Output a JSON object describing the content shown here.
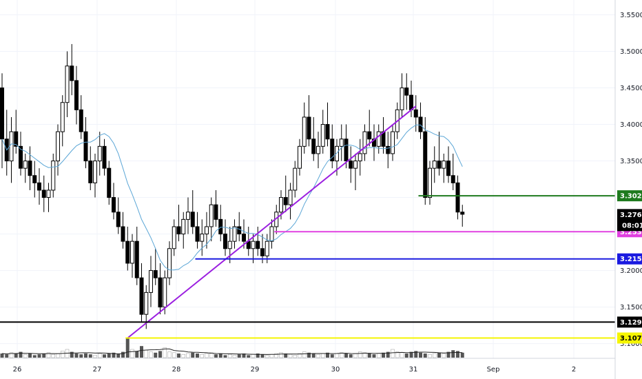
{
  "chart_data": {
    "type": "candlestick",
    "title": "",
    "xlabel": "",
    "ylabel": "",
    "ylim": [
      3.093,
      3.559
    ],
    "x_ticks": [
      "26",
      "27",
      "28",
      "29",
      "30",
      "31",
      "Sep",
      "2"
    ],
    "y_ticks": [
      "3.1000",
      "3.1500",
      "3.2000",
      "3.2500",
      "3.3000",
      "3.3500",
      "3.4000",
      "3.4500",
      "3.5000",
      "3.5500"
    ],
    "candles": [
      [
        3.45,
        3.47,
        3.34,
        3.38
      ],
      [
        3.38,
        3.42,
        3.33,
        3.35
      ],
      [
        3.35,
        3.41,
        3.32,
        3.39
      ],
      [
        3.39,
        3.42,
        3.36,
        3.37
      ],
      [
        3.37,
        3.39,
        3.33,
        3.34
      ],
      [
        3.34,
        3.36,
        3.32,
        3.35
      ],
      [
        3.35,
        3.37,
        3.31,
        3.33
      ],
      [
        3.33,
        3.35,
        3.3,
        3.32
      ],
      [
        3.32,
        3.34,
        3.29,
        3.31
      ],
      [
        3.31,
        3.33,
        3.28,
        3.3
      ],
      [
        3.3,
        3.32,
        3.28,
        3.31
      ],
      [
        3.31,
        3.36,
        3.3,
        3.35
      ],
      [
        3.35,
        3.4,
        3.33,
        3.39
      ],
      [
        3.39,
        3.44,
        3.37,
        3.43
      ],
      [
        3.43,
        3.5,
        3.41,
        3.48
      ],
      [
        3.48,
        3.51,
        3.44,
        3.46
      ],
      [
        3.46,
        3.48,
        3.4,
        3.42
      ],
      [
        3.42,
        3.44,
        3.38,
        3.39
      ],
      [
        3.39,
        3.41,
        3.34,
        3.35
      ],
      [
        3.35,
        3.37,
        3.31,
        3.32
      ],
      [
        3.32,
        3.36,
        3.3,
        3.35
      ],
      [
        3.35,
        3.39,
        3.33,
        3.37
      ],
      [
        3.37,
        3.38,
        3.33,
        3.34
      ],
      [
        3.34,
        3.35,
        3.29,
        3.3
      ],
      [
        3.3,
        3.32,
        3.27,
        3.28
      ],
      [
        3.28,
        3.3,
        3.25,
        3.26
      ],
      [
        3.26,
        3.28,
        3.23,
        3.24
      ],
      [
        3.24,
        3.26,
        3.2,
        3.21
      ],
      [
        3.21,
        3.25,
        3.19,
        3.24
      ],
      [
        3.24,
        3.26,
        3.18,
        3.19
      ],
      [
        3.19,
        3.21,
        3.13,
        3.14
      ],
      [
        3.14,
        3.18,
        3.12,
        3.17
      ],
      [
        3.17,
        3.22,
        3.15,
        3.2
      ],
      [
        3.2,
        3.23,
        3.18,
        3.19
      ],
      [
        3.19,
        3.21,
        3.14,
        3.15
      ],
      [
        3.15,
        3.2,
        3.14,
        3.19
      ],
      [
        3.19,
        3.24,
        3.18,
        3.23
      ],
      [
        3.23,
        3.27,
        3.22,
        3.26
      ],
      [
        3.26,
        3.29,
        3.24,
        3.25
      ],
      [
        3.25,
        3.28,
        3.23,
        3.27
      ],
      [
        3.27,
        3.3,
        3.25,
        3.28
      ],
      [
        3.28,
        3.31,
        3.25,
        3.26
      ],
      [
        3.26,
        3.28,
        3.23,
        3.24
      ],
      [
        3.24,
        3.27,
        3.22,
        3.25
      ],
      [
        3.25,
        3.28,
        3.23,
        3.26
      ],
      [
        3.26,
        3.3,
        3.24,
        3.29
      ],
      [
        3.29,
        3.31,
        3.26,
        3.27
      ],
      [
        3.27,
        3.29,
        3.24,
        3.25
      ],
      [
        3.25,
        3.27,
        3.22,
        3.23
      ],
      [
        3.23,
        3.26,
        3.21,
        3.24
      ],
      [
        3.24,
        3.27,
        3.23,
        3.26
      ],
      [
        3.26,
        3.28,
        3.24,
        3.25
      ],
      [
        3.25,
        3.27,
        3.23,
        3.24
      ],
      [
        3.24,
        3.26,
        3.22,
        3.23
      ],
      [
        3.23,
        3.25,
        3.21,
        3.24
      ],
      [
        3.24,
        3.26,
        3.22,
        3.23
      ],
      [
        3.23,
        3.25,
        3.21,
        3.22
      ],
      [
        3.22,
        3.25,
        3.21,
        3.24
      ],
      [
        3.24,
        3.27,
        3.23,
        3.26
      ],
      [
        3.26,
        3.29,
        3.25,
        3.28
      ],
      [
        3.28,
        3.31,
        3.27,
        3.3
      ],
      [
        3.3,
        3.33,
        3.28,
        3.29
      ],
      [
        3.29,
        3.32,
        3.27,
        3.31
      ],
      [
        3.31,
        3.35,
        3.3,
        3.34
      ],
      [
        3.34,
        3.38,
        3.33,
        3.37
      ],
      [
        3.37,
        3.43,
        3.36,
        3.41
      ],
      [
        3.41,
        3.44,
        3.37,
        3.38
      ],
      [
        3.38,
        3.41,
        3.35,
        3.36
      ],
      [
        3.36,
        3.39,
        3.34,
        3.37
      ],
      [
        3.37,
        3.42,
        3.36,
        3.4
      ],
      [
        3.4,
        3.43,
        3.37,
        3.38
      ],
      [
        3.38,
        3.4,
        3.34,
        3.35
      ],
      [
        3.35,
        3.38,
        3.33,
        3.37
      ],
      [
        3.37,
        3.4,
        3.35,
        3.38
      ],
      [
        3.38,
        3.4,
        3.34,
        3.35
      ],
      [
        3.35,
        3.37,
        3.32,
        3.34
      ],
      [
        3.34,
        3.36,
        3.31,
        3.35
      ],
      [
        3.35,
        3.38,
        3.33,
        3.36
      ],
      [
        3.36,
        3.4,
        3.35,
        3.39
      ],
      [
        3.39,
        3.42,
        3.37,
        3.38
      ],
      [
        3.38,
        3.4,
        3.35,
        3.37
      ],
      [
        3.37,
        3.4,
        3.36,
        3.39
      ],
      [
        3.39,
        3.41,
        3.36,
        3.37
      ],
      [
        3.37,
        3.39,
        3.34,
        3.36
      ],
      [
        3.36,
        3.4,
        3.35,
        3.39
      ],
      [
        3.39,
        3.43,
        3.38,
        3.42
      ],
      [
        3.42,
        3.47,
        3.41,
        3.45
      ],
      [
        3.45,
        3.47,
        3.42,
        3.44
      ],
      [
        3.44,
        3.46,
        3.41,
        3.42
      ],
      [
        3.42,
        3.44,
        3.39,
        3.41
      ],
      [
        3.41,
        3.43,
        3.38,
        3.39
      ],
      [
        3.39,
        3.41,
        3.29,
        3.3
      ],
      [
        3.3,
        3.35,
        3.29,
        3.34
      ],
      [
        3.34,
        3.37,
        3.32,
        3.35
      ],
      [
        3.35,
        3.39,
        3.33,
        3.34
      ],
      [
        3.34,
        3.36,
        3.32,
        3.35
      ],
      [
        3.35,
        3.37,
        3.32,
        3.33
      ],
      [
        3.33,
        3.36,
        3.31,
        3.32
      ],
      [
        3.32,
        3.33,
        3.27,
        3.28
      ],
      [
        3.28,
        3.29,
        3.26,
        3.277
      ]
    ],
    "volume_ratio": [
      0.5,
      0.4,
      0.6,
      0.5,
      0.7,
      0.4,
      0.5,
      0.3,
      0.4,
      0.5,
      0.6,
      0.4,
      0.5,
      0.8,
      1.0,
      0.7,
      0.5,
      0.4,
      0.5,
      0.4,
      0.3,
      0.5,
      0.4,
      0.5,
      0.6,
      0.5,
      0.7,
      2.4,
      1.0,
      0.8,
      1.4,
      0.9,
      0.7,
      0.6,
      0.8,
      1.2,
      0.7,
      0.6,
      0.5,
      0.4,
      0.5,
      0.6,
      0.5,
      0.4,
      0.5,
      0.6,
      0.4,
      0.5,
      0.3,
      0.4,
      0.3,
      0.4,
      0.5,
      0.3,
      0.4,
      0.5,
      0.4,
      0.3,
      0.4,
      0.5,
      0.6,
      0.5,
      0.4,
      0.3,
      0.5,
      0.7,
      0.6,
      0.5,
      0.4,
      0.5,
      0.6,
      0.4,
      0.5,
      0.6,
      0.5,
      0.4,
      0.5,
      0.7,
      0.6,
      0.5,
      0.4,
      0.5,
      0.6,
      0.7,
      1.0,
      0.7,
      0.6,
      0.5,
      0.7,
      0.8,
      0.6,
      0.5,
      0.4,
      0.5,
      0.6,
      0.5,
      0.7,
      0.9,
      0.8,
      0.6
    ],
    "moving_average": {
      "color": "#5ba6d6"
    },
    "price_lines": [
      {
        "value": 3.3023,
        "label": "3.3023",
        "color": "#1e7a1e",
        "text_color": "#ffffff"
      },
      {
        "value": 3.2531,
        "label": "3.2531",
        "color": "#e040e0",
        "text_color": "#ffffff"
      },
      {
        "value": 3.2159,
        "label": "3.2159",
        "color": "#1a1ae0",
        "text_color": "#ffffff"
      },
      {
        "value": 3.1294,
        "label": "3.1294",
        "color": "#000000",
        "text_color": "#ffffff"
      },
      {
        "value": 3.1076,
        "label": "3.1076",
        "color": "#f5f500",
        "text_color": "#000000"
      }
    ],
    "current_price": {
      "label": "3.2766",
      "countdown": "08:01",
      "color": "#000000",
      "text_color": "#ffffff"
    },
    "trendlines": [
      {
        "color": "#9b1fe0",
        "from": [
          27,
          3.1076
        ],
        "to": [
          89,
          3.425
        ]
      }
    ],
    "colors": {
      "up": "#ffffff",
      "down": "#000000",
      "wick": "#000000",
      "volume_up": "#ffffff",
      "volume_down": "#555555"
    }
  }
}
